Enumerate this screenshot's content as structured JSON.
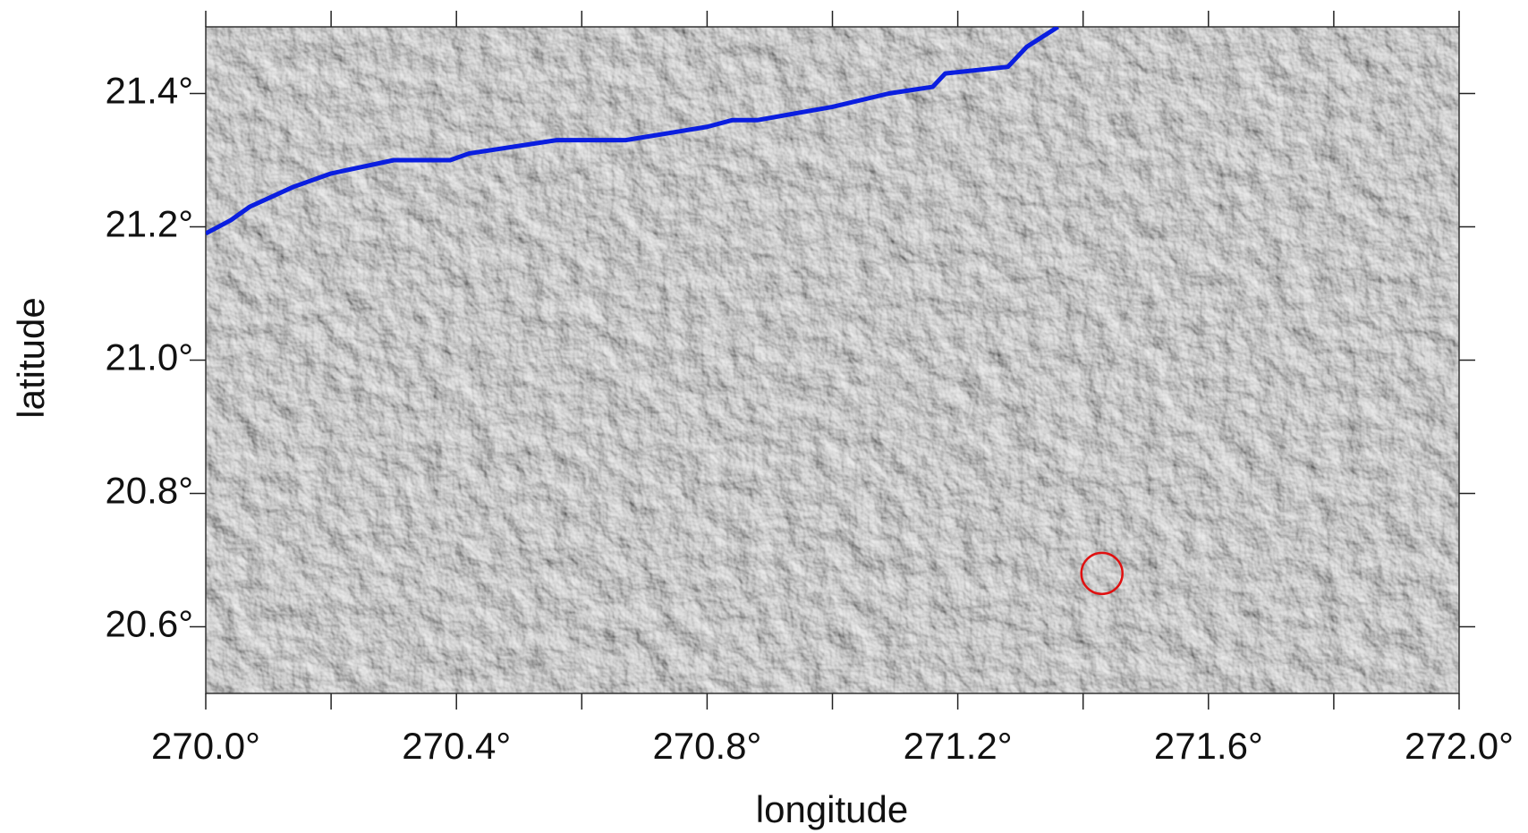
{
  "chart_data": {
    "type": "line",
    "x_label": "longitude",
    "y_label": "latitude",
    "xlim": [
      270.0,
      272.0
    ],
    "ylim": [
      20.5,
      21.5
    ],
    "xticks": [
      {
        "value": 270.0,
        "label": "270.0°"
      },
      {
        "value": 270.4,
        "label": "270.4°"
      },
      {
        "value": 270.8,
        "label": "270.8°"
      },
      {
        "value": 271.2,
        "label": "271.2°"
      },
      {
        "value": 271.6,
        "label": "271.6°"
      },
      {
        "value": 272.0,
        "label": "272.0°"
      }
    ],
    "xticks_minor": [
      270.2,
      270.6,
      271.0,
      271.4,
      271.8
    ],
    "yticks": [
      {
        "value": 20.6,
        "label": "20.6°"
      },
      {
        "value": 20.8,
        "label": "20.8°"
      },
      {
        "value": 21.0,
        "label": "21.0°"
      },
      {
        "value": 21.2,
        "label": "21.2°"
      },
      {
        "value": 21.4,
        "label": "21.4°"
      }
    ],
    "series": [
      {
        "color": "#0a1ee0",
        "x": [
          270.0,
          270.04,
          270.07,
          270.14,
          270.2,
          270.3,
          270.39,
          270.42,
          270.56,
          270.59,
          270.67,
          270.8,
          270.84,
          270.88,
          271.0,
          271.09,
          271.16,
          271.18,
          271.28,
          271.31,
          271.36
        ],
        "values": [
          21.19,
          21.21,
          21.23,
          21.26,
          21.28,
          21.3,
          21.3,
          21.31,
          21.33,
          21.33,
          21.33,
          21.35,
          21.36,
          21.36,
          21.38,
          21.4,
          21.41,
          21.43,
          21.44,
          21.47,
          21.5
        ]
      }
    ],
    "markers": {
      "color": "#e01010",
      "x": [
        271.43
      ],
      "values": [
        20.68
      ]
    }
  }
}
